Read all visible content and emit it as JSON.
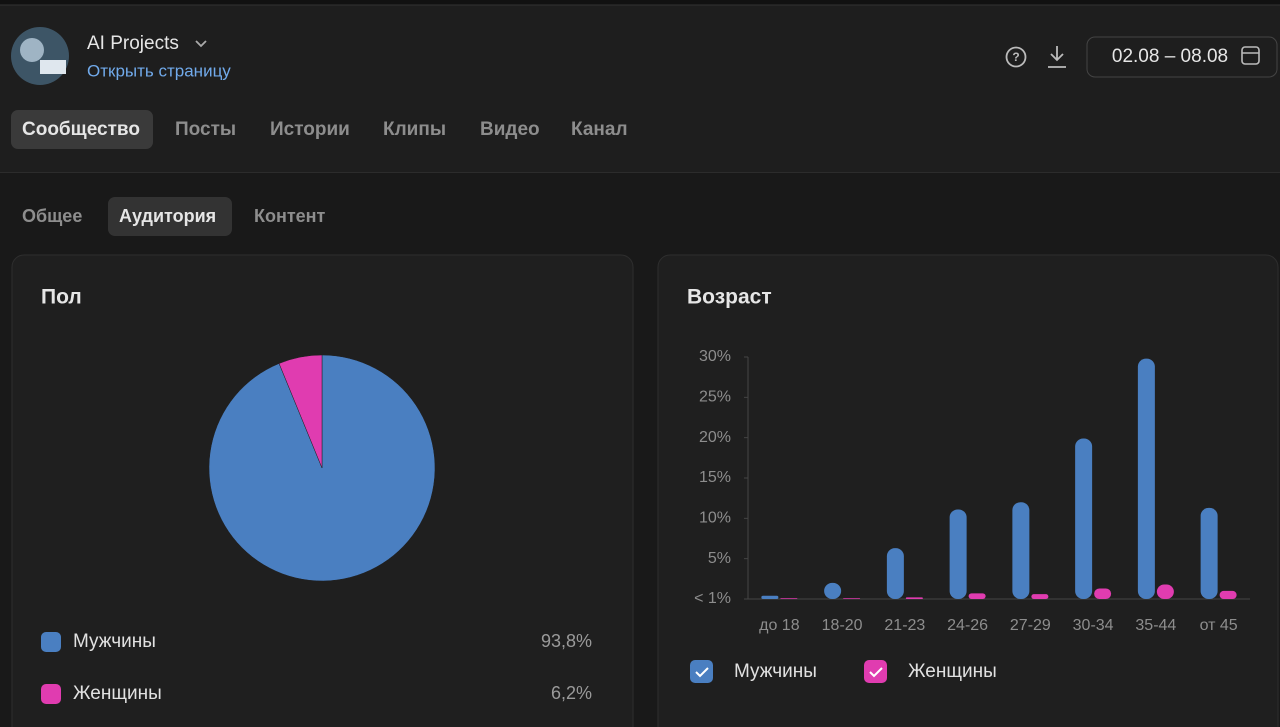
{
  "header": {
    "project": "AI Projects",
    "link": "Открыть страницу",
    "date_range": "02.08 – 08.08"
  },
  "tabs": [
    "Сообщество",
    "Посты",
    "Истории",
    "Клипы",
    "Видео",
    "Канал"
  ],
  "subtabs": [
    "Общее",
    "Аудитория",
    "Контент"
  ],
  "chart_data": [
    {
      "type": "pie",
      "title": "Пол",
      "categories": [
        "Мужчины",
        "Женщины"
      ],
      "values": [
        93.8,
        6.2
      ],
      "value_labels": [
        "93,8%",
        "6,2%"
      ],
      "colors": [
        "#4a7fc1",
        "#e03cb0"
      ]
    },
    {
      "type": "bar",
      "title": "Возраст",
      "categories": [
        "до 18",
        "18-20",
        "21-23",
        "24-26",
        "27-29",
        "30-34",
        "35-44",
        "от 45"
      ],
      "series": [
        {
          "name": "Мужчины",
          "color": "#4a7fc1",
          "values": [
            0.4,
            2,
            6.3,
            11.1,
            12,
            19.9,
            29.8,
            11.3
          ]
        },
        {
          "name": "Женщины",
          "color": "#e03cb0",
          "values": [
            0.1,
            0.1,
            0.2,
            0.7,
            0.6,
            1.3,
            1.8,
            1.0
          ]
        }
      ],
      "ylim": [
        0,
        30
      ],
      "yticks": [
        {
          "value": 0,
          "label": "< 1%"
        },
        {
          "value": 5,
          "label": "5%"
        },
        {
          "value": 10,
          "label": "10%"
        },
        {
          "value": 15,
          "label": "15%"
        },
        {
          "value": 20,
          "label": "20%"
        },
        {
          "value": 25,
          "label": "25%"
        },
        {
          "value": 30,
          "label": "30%"
        }
      ],
      "grid": false
    }
  ]
}
